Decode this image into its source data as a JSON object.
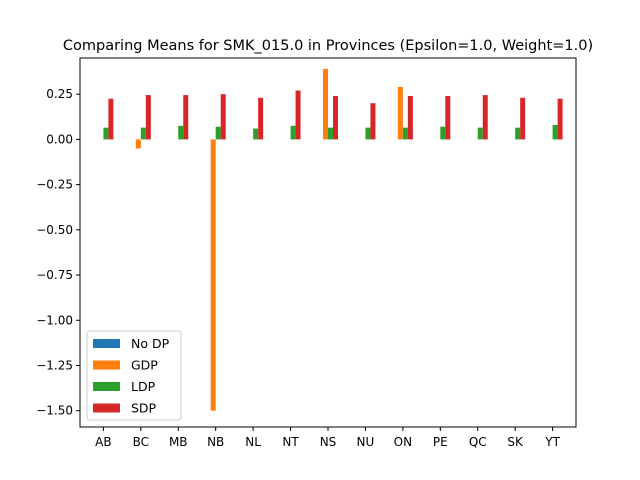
{
  "chart_data": {
    "type": "bar",
    "title": "Comparing Means for SMK_015.0 in Provinces (Epsilon=1.0, Weight=1.0)",
    "xlabel": "",
    "ylabel": "",
    "categories": [
      "AB",
      "BC",
      "MB",
      "NB",
      "NL",
      "NT",
      "NS",
      "NU",
      "ON",
      "PE",
      "QC",
      "SK",
      "YT"
    ],
    "ylim": [
      -1.59,
      0.45
    ],
    "yticks": [
      -1.5,
      -1.25,
      -1.0,
      -0.75,
      -0.5,
      -0.25,
      0.0,
      0.25
    ],
    "ytick_labels": [
      "−1.50",
      "−1.25",
      "−1.00",
      "−0.75",
      "−0.50",
      "−0.25",
      "0.00",
      "0.25"
    ],
    "grid": false,
    "legend_position": "lower-left",
    "series": [
      {
        "name": "No DP",
        "color": "#1f77b4",
        "values": [
          0,
          0,
          0,
          0,
          0,
          0,
          0,
          0,
          0,
          0,
          0,
          0,
          0
        ]
      },
      {
        "name": "GDP",
        "color": "#ff7f0e",
        "values": [
          0,
          -0.05,
          0,
          -1.5,
          0,
          0,
          0.39,
          0,
          0.29,
          0,
          0,
          0,
          0
        ]
      },
      {
        "name": "LDP",
        "color": "#2ca02c",
        "values": [
          0.065,
          0.065,
          0.075,
          0.07,
          0.06,
          0.075,
          0.065,
          0.065,
          0.065,
          0.07,
          0.065,
          0.065,
          0.08
        ]
      },
      {
        "name": "SDP",
        "color": "#d62728",
        "values": [
          0.225,
          0.245,
          0.245,
          0.25,
          0.23,
          0.27,
          0.24,
          0.2,
          0.24,
          0.24,
          0.245,
          0.23,
          0.225
        ]
      }
    ]
  }
}
